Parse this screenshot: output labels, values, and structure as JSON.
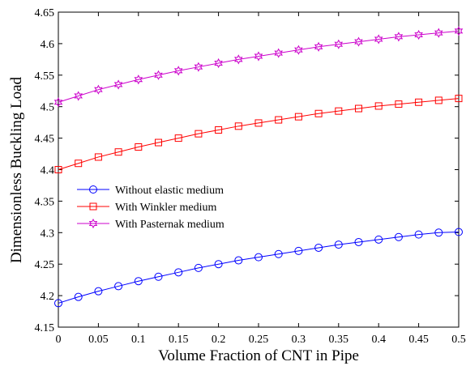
{
  "chart_data": {
    "type": "line",
    "xlabel": "Volume Fraction of CNT in Pipe",
    "ylabel": "Dimensionless Buckling Load",
    "xlim": [
      0,
      0.5
    ],
    "ylim": [
      4.15,
      4.65
    ],
    "xticks": [
      "0",
      "0.05",
      "0.1",
      "0.15",
      "0.2",
      "0.25",
      "0.3",
      "0.35",
      "0.4",
      "0.45",
      "0.5"
    ],
    "yticks": [
      "4.15",
      "4.2",
      "4.25",
      "4.3",
      "4.35",
      "4.4",
      "4.45",
      "4.5",
      "4.55",
      "4.6",
      "4.65"
    ],
    "grid": false,
    "legend_position": "center-left",
    "x": [
      0,
      0.025,
      0.05,
      0.075,
      0.1,
      0.125,
      0.15,
      0.175,
      0.2,
      0.225,
      0.25,
      0.275,
      0.3,
      0.325,
      0.35,
      0.375,
      0.4,
      0.425,
      0.45,
      0.475,
      0.5
    ],
    "series": [
      {
        "name": "Without elastic medium",
        "color": "#0000ff",
        "marker": "circle",
        "values": [
          4.188,
          4.198,
          4.207,
          4.215,
          4.223,
          4.23,
          4.237,
          4.244,
          4.25,
          4.256,
          4.261,
          4.266,
          4.271,
          4.276,
          4.281,
          4.285,
          4.289,
          4.293,
          4.297,
          4.3,
          4.301
        ]
      },
      {
        "name": "With Winkler medium",
        "color": "#ff0000",
        "marker": "square",
        "values": [
          4.4,
          4.41,
          4.42,
          4.428,
          4.436,
          4.443,
          4.45,
          4.457,
          4.463,
          4.469,
          4.474,
          4.479,
          4.484,
          4.489,
          4.493,
          4.497,
          4.501,
          4.504,
          4.507,
          4.51,
          4.513
        ]
      },
      {
        "name": "With Pasternak medium",
        "color": "#cc00cc",
        "marker": "star",
        "values": [
          4.507,
          4.517,
          4.527,
          4.535,
          4.543,
          4.55,
          4.557,
          4.563,
          4.569,
          4.575,
          4.58,
          4.585,
          4.59,
          4.595,
          4.599,
          4.603,
          4.607,
          4.611,
          4.614,
          4.617,
          4.62
        ]
      }
    ]
  }
}
